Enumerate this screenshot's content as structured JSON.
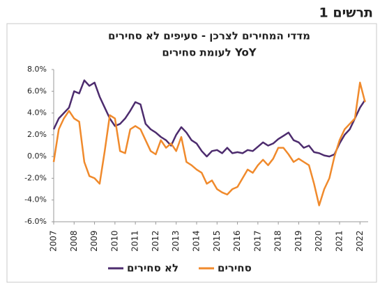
{
  "chart_data": {
    "type": "line",
    "chart_label": "תרשים 1",
    "title": "מדדי המחירים לצרכן - סעיפים לא סחירים",
    "subtitle": "לעומת סחירים YoY",
    "x": [
      2007,
      2007.25,
      2007.5,
      2007.75,
      2008,
      2008.25,
      2008.5,
      2008.75,
      2009,
      2009.25,
      2009.5,
      2009.75,
      2010,
      2010.25,
      2010.5,
      2010.75,
      2011,
      2011.25,
      2011.5,
      2011.75,
      2012,
      2012.25,
      2012.5,
      2012.75,
      2013,
      2013.25,
      2013.5,
      2013.75,
      2014,
      2014.25,
      2014.5,
      2014.75,
      2015,
      2015.25,
      2015.5,
      2015.75,
      2016,
      2016.25,
      2016.5,
      2016.75,
      2017,
      2017.25,
      2017.5,
      2017.75,
      2018,
      2018.25,
      2018.5,
      2018.75,
      2019,
      2019.25,
      2019.5,
      2019.75,
      2020,
      2020.25,
      2020.5,
      2020.75,
      2021,
      2021.25,
      2021.5,
      2021.75,
      2022,
      2022.25
    ],
    "series": [
      {
        "name": "לא סחירים",
        "color": "#4d2c6e",
        "values": [
          2.5,
          3.5,
          4.0,
          4.5,
          6.0,
          5.8,
          7.0,
          6.5,
          6.8,
          5.5,
          4.5,
          3.5,
          2.8,
          3.0,
          3.5,
          4.2,
          5.0,
          4.8,
          3.0,
          2.5,
          2.2,
          1.8,
          1.5,
          1.0,
          2.0,
          2.7,
          2.2,
          1.5,
          1.2,
          0.5,
          0.0,
          0.5,
          0.6,
          0.3,
          0.8,
          0.3,
          0.4,
          0.3,
          0.6,
          0.5,
          0.9,
          1.3,
          1.0,
          1.2,
          1.6,
          1.9,
          2.2,
          1.5,
          1.3,
          0.8,
          1.0,
          0.4,
          0.3,
          0.1,
          0.0,
          0.2,
          1.2,
          2.0,
          2.5,
          3.5,
          4.5,
          5.2
        ]
      },
      {
        "name": "סחירים",
        "color": "#f08a2c",
        "values": [
          -0.5,
          2.5,
          3.5,
          4.2,
          3.5,
          3.2,
          -0.5,
          -1.8,
          -2.0,
          -2.5,
          0.5,
          3.8,
          3.5,
          0.5,
          0.3,
          2.5,
          2.8,
          2.5,
          1.5,
          0.5,
          0.2,
          1.5,
          0.8,
          1.2,
          0.5,
          1.8,
          -0.5,
          -0.8,
          -1.2,
          -1.5,
          -2.5,
          -2.2,
          -3.0,
          -3.3,
          -3.5,
          -3.0,
          -2.8,
          -2.0,
          -1.2,
          -1.5,
          -0.8,
          -0.3,
          -0.8,
          -0.2,
          0.8,
          0.8,
          0.2,
          -0.5,
          -0.2,
          -0.5,
          -0.8,
          -2.5,
          -4.5,
          -3.0,
          -2.0,
          0.0,
          1.5,
          2.5,
          3.0,
          3.5,
          6.8,
          5.0
        ]
      }
    ],
    "xlim": [
      2007,
      2022.4
    ],
    "xticks": [
      2007,
      2008,
      2009,
      2010,
      2011,
      2012,
      2013,
      2014,
      2015,
      2016,
      2017,
      2018,
      2019,
      2020,
      2021,
      2022
    ],
    "ylim": [
      -6,
      8
    ],
    "yticks": [
      {
        "value": 8,
        "label": "8.0%"
      },
      {
        "value": 6,
        "label": "6.0%"
      },
      {
        "value": 4,
        "label": "4.0%"
      },
      {
        "value": 2,
        "label": "2.0%"
      },
      {
        "value": 0,
        "label": "0.0%"
      },
      {
        "value": -2,
        "label": "-2.0%"
      },
      {
        "value": -4,
        "label": "-4.0%"
      },
      {
        "value": -6,
        "label": "-6.0%"
      }
    ],
    "legend": "bottom"
  }
}
